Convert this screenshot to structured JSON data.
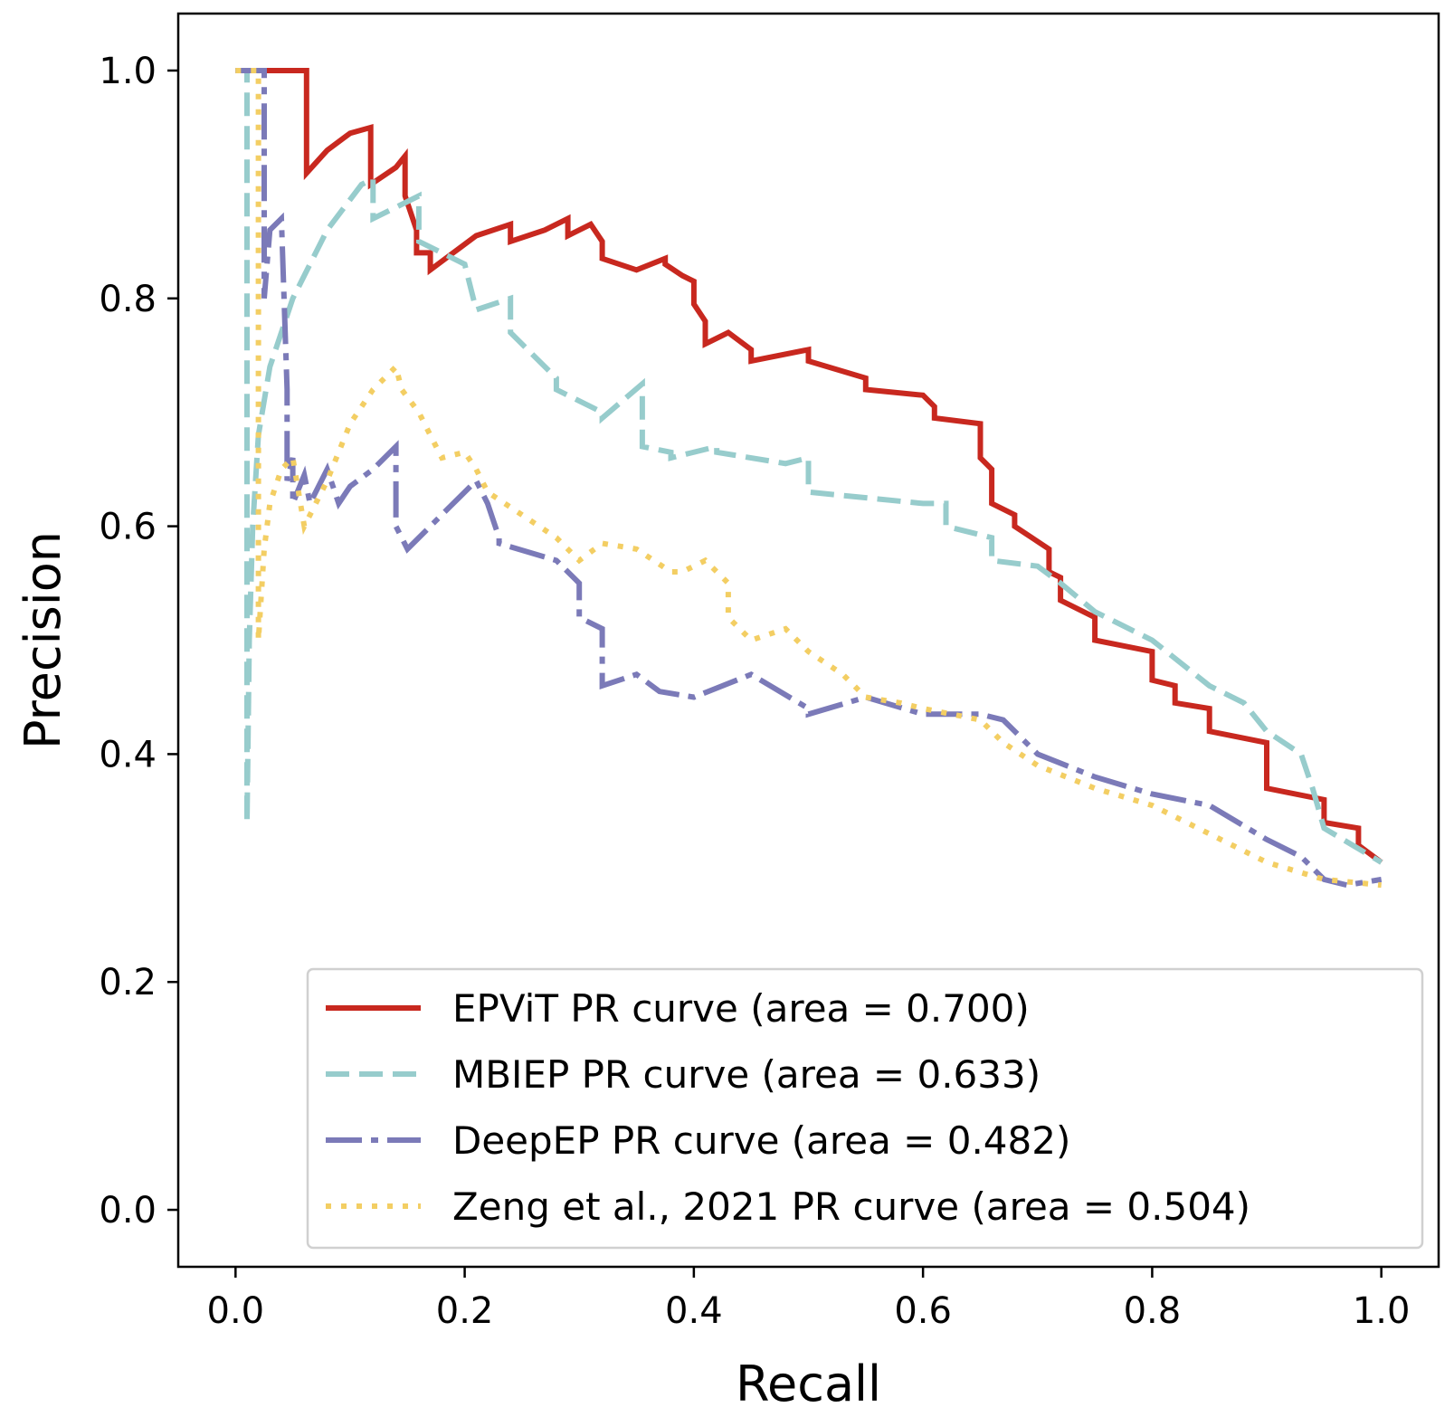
{
  "chart_data": {
    "type": "line",
    "title": "",
    "xlabel": "Recall",
    "ylabel": "Precision",
    "xlim": [
      -0.05,
      1.05
    ],
    "ylim": [
      -0.05,
      1.05
    ],
    "xticks": [
      0.0,
      0.2,
      0.4,
      0.6,
      0.8,
      1.0
    ],
    "yticks": [
      0.0,
      0.2,
      0.4,
      0.6,
      0.8,
      1.0
    ],
    "xtick_labels": [
      "0.0",
      "0.2",
      "0.4",
      "0.6",
      "0.8",
      "1.0"
    ],
    "ytick_labels": [
      "0.0",
      "0.2",
      "0.4",
      "0.6",
      "0.8",
      "1.0"
    ],
    "grid": false,
    "legend_position": "lower-right",
    "series": [
      {
        "name": "EPViT PR curve (area = 0.700)",
        "color": "#c8281f",
        "style": "solid",
        "x": [
          0.0,
          0.062,
          0.062,
          0.08,
          0.1,
          0.118,
          0.118,
          0.14,
          0.148,
          0.148,
          0.158,
          0.158,
          0.17,
          0.17,
          0.19,
          0.21,
          0.24,
          0.24,
          0.27,
          0.29,
          0.29,
          0.31,
          0.32,
          0.32,
          0.35,
          0.375,
          0.375,
          0.39,
          0.4,
          0.4,
          0.41,
          0.41,
          0.43,
          0.45,
          0.45,
          0.5,
          0.5,
          0.55,
          0.55,
          0.6,
          0.61,
          0.61,
          0.65,
          0.65,
          0.66,
          0.66,
          0.68,
          0.68,
          0.71,
          0.71,
          0.72,
          0.72,
          0.75,
          0.75,
          0.8,
          0.8,
          0.82,
          0.82,
          0.85,
          0.85,
          0.9,
          0.9,
          0.95,
          0.95,
          0.98,
          0.98,
          1.0
        ],
        "y": [
          1.0,
          1.0,
          0.91,
          0.93,
          0.945,
          0.95,
          0.9,
          0.915,
          0.925,
          0.89,
          0.86,
          0.84,
          0.84,
          0.825,
          0.84,
          0.855,
          0.865,
          0.85,
          0.86,
          0.87,
          0.855,
          0.865,
          0.85,
          0.835,
          0.825,
          0.835,
          0.83,
          0.82,
          0.815,
          0.795,
          0.78,
          0.76,
          0.77,
          0.755,
          0.745,
          0.755,
          0.745,
          0.73,
          0.72,
          0.715,
          0.705,
          0.695,
          0.69,
          0.66,
          0.65,
          0.62,
          0.61,
          0.6,
          0.58,
          0.56,
          0.555,
          0.535,
          0.52,
          0.5,
          0.49,
          0.465,
          0.46,
          0.445,
          0.44,
          0.42,
          0.41,
          0.37,
          0.36,
          0.34,
          0.335,
          0.32,
          0.305
        ]
      },
      {
        "name": "MBIEP PR curve (area = 0.633)",
        "color": "#97cccc",
        "style": "dashed",
        "x": [
          0.0,
          0.01,
          0.01,
          0.012,
          0.015,
          0.02,
          0.03,
          0.05,
          0.08,
          0.11,
          0.12,
          0.12,
          0.16,
          0.16,
          0.18,
          0.2,
          0.21,
          0.21,
          0.24,
          0.24,
          0.28,
          0.28,
          0.32,
          0.32,
          0.355,
          0.355,
          0.38,
          0.38,
          0.42,
          0.42,
          0.48,
          0.5,
          0.5,
          0.6,
          0.62,
          0.62,
          0.66,
          0.66,
          0.7,
          0.72,
          0.75,
          0.8,
          0.85,
          0.88,
          0.9,
          0.93,
          0.94,
          0.95,
          1.0
        ],
        "y": [
          1.0,
          1.0,
          0.34,
          0.5,
          0.6,
          0.68,
          0.74,
          0.8,
          0.86,
          0.9,
          0.905,
          0.87,
          0.89,
          0.85,
          0.84,
          0.83,
          0.79,
          0.79,
          0.8,
          0.77,
          0.73,
          0.72,
          0.7,
          0.695,
          0.725,
          0.67,
          0.665,
          0.66,
          0.67,
          0.665,
          0.655,
          0.66,
          0.63,
          0.62,
          0.62,
          0.6,
          0.59,
          0.57,
          0.565,
          0.55,
          0.525,
          0.5,
          0.46,
          0.445,
          0.42,
          0.4,
          0.37,
          0.335,
          0.305
        ]
      },
      {
        "name": "DeepEP PR curve (area = 0.482)",
        "color": "#7b7ab8",
        "style": "dashdot",
        "x": [
          0.0,
          0.025,
          0.025,
          0.03,
          0.04,
          0.045,
          0.045,
          0.05,
          0.05,
          0.06,
          0.065,
          0.08,
          0.09,
          0.1,
          0.12,
          0.14,
          0.14,
          0.15,
          0.15,
          0.17,
          0.19,
          0.21,
          0.22,
          0.23,
          0.23,
          0.28,
          0.3,
          0.3,
          0.32,
          0.32,
          0.35,
          0.37,
          0.4,
          0.45,
          0.5,
          0.5,
          0.55,
          0.6,
          0.65,
          0.67,
          0.7,
          0.75,
          0.8,
          0.85,
          0.9,
          0.93,
          0.95,
          0.97,
          1.0
        ],
        "y": [
          1.0,
          1.0,
          0.8,
          0.86,
          0.87,
          0.72,
          0.64,
          0.66,
          0.62,
          0.645,
          0.62,
          0.65,
          0.62,
          0.635,
          0.65,
          0.67,
          0.6,
          0.58,
          0.58,
          0.6,
          0.62,
          0.64,
          0.62,
          0.59,
          0.585,
          0.57,
          0.55,
          0.52,
          0.51,
          0.46,
          0.47,
          0.455,
          0.45,
          0.47,
          0.44,
          0.435,
          0.45,
          0.435,
          0.435,
          0.43,
          0.4,
          0.38,
          0.365,
          0.355,
          0.325,
          0.31,
          0.29,
          0.285,
          0.29
        ]
      },
      {
        "name": "Zeng et al., 2021 PR curve (area = 0.504)",
        "color": "#f3ce63",
        "style": "dotted",
        "x": [
          0.0,
          0.02,
          0.02,
          0.025,
          0.03,
          0.04,
          0.05,
          0.06,
          0.07,
          0.08,
          0.1,
          0.12,
          0.14,
          0.145,
          0.16,
          0.17,
          0.18,
          0.2,
          0.21,
          0.22,
          0.25,
          0.28,
          0.3,
          0.32,
          0.35,
          0.38,
          0.39,
          0.41,
          0.43,
          0.43,
          0.45,
          0.48,
          0.5,
          0.53,
          0.55,
          0.58,
          0.6,
          0.65,
          0.67,
          0.7,
          0.75,
          0.8,
          0.85,
          0.9,
          0.95,
          1.0
        ],
        "y": [
          1.0,
          1.0,
          0.5,
          0.58,
          0.62,
          0.65,
          0.66,
          0.6,
          0.62,
          0.64,
          0.69,
          0.72,
          0.74,
          0.72,
          0.7,
          0.68,
          0.66,
          0.665,
          0.65,
          0.63,
          0.61,
          0.59,
          0.57,
          0.585,
          0.58,
          0.56,
          0.56,
          0.57,
          0.55,
          0.52,
          0.5,
          0.51,
          0.49,
          0.47,
          0.45,
          0.445,
          0.44,
          0.43,
          0.41,
          0.39,
          0.37,
          0.355,
          0.33,
          0.305,
          0.29,
          0.285
        ]
      }
    ]
  }
}
